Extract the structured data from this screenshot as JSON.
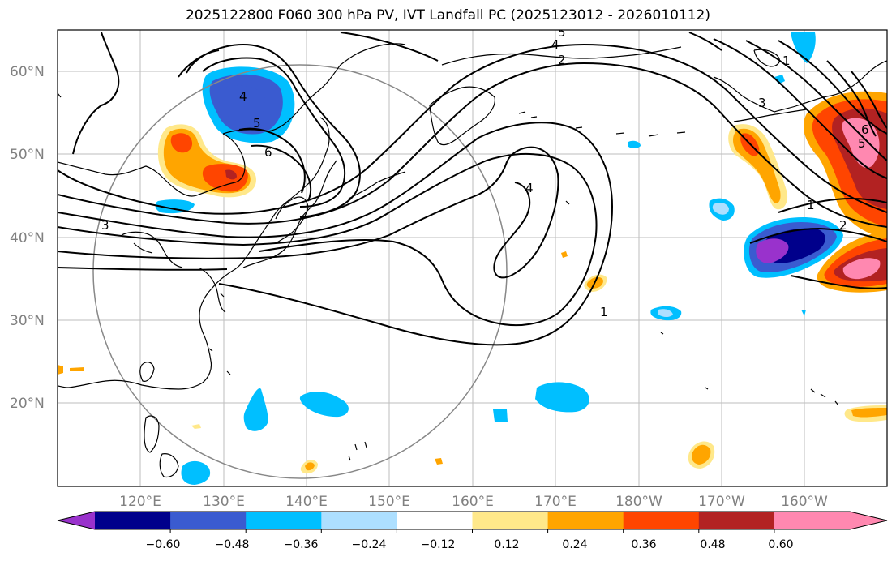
{
  "title": "2025122800 F060 300 hPa PV, IVT Landfall PC (2025123012 - 2026010112)",
  "map": {
    "lon_labels": [
      "120°E",
      "130°E",
      "140°E",
      "150°E",
      "160°E",
      "170°E",
      "180°W",
      "170°W",
      "160°W"
    ],
    "lat_labels": [
      "60°N",
      "50°N",
      "40°N",
      "30°N",
      "20°N"
    ],
    "pv_contour_labels": [
      "5",
      "4",
      "2",
      "3",
      "4",
      "5",
      "6",
      "3",
      "4",
      "1",
      "2",
      "6",
      "5",
      "1",
      "1"
    ]
  },
  "colorbar": {
    "ticks": [
      "−0.60",
      "−0.48",
      "−0.36",
      "−0.24",
      "−0.12",
      "0.12",
      "0.24",
      "0.36",
      "0.48",
      "0.60"
    ],
    "colors": [
      "#9932CC",
      "#00008B",
      "#3A5BD0",
      "#00BFFF",
      "#ADDFFF",
      "#FFFFFF",
      "#FFE88A",
      "#FFA500",
      "#FF4500",
      "#B22222",
      "#FF88B0",
      "#FF88B0"
    ]
  }
}
